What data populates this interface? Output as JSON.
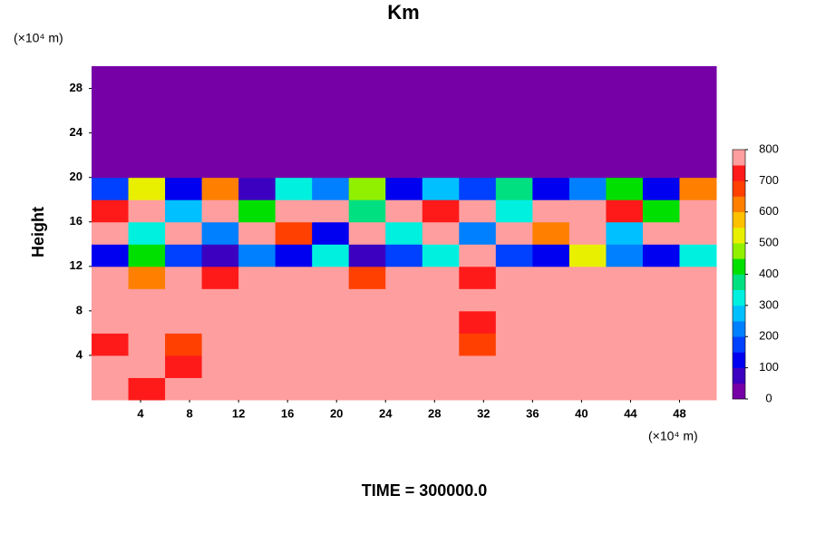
{
  "chart_data": {
    "type": "heatmap",
    "title": "Km",
    "y_label": "Height",
    "x_unit": "(×10⁴ m)",
    "y_unit": "(×10⁴ m)",
    "footer": "TIME = 300000.0",
    "xlim": [
      0,
      51
    ],
    "ylim": [
      0,
      30
    ],
    "xticks": [
      4,
      8,
      12,
      16,
      20,
      24,
      28,
      32,
      36,
      40,
      44,
      48
    ],
    "yticks": [
      4,
      8,
      12,
      16,
      20,
      24,
      28
    ],
    "x_edges": [
      0,
      3,
      6,
      9,
      12,
      15,
      18,
      21,
      24,
      27,
      30,
      33,
      36,
      39,
      42,
      45,
      48,
      51
    ],
    "y_edges": [
      0,
      2,
      4,
      6,
      8,
      10,
      12,
      14,
      16,
      18,
      20,
      22,
      24,
      26,
      28,
      30
    ],
    "z": [
      [
        800,
        700,
        800,
        800,
        750,
        800,
        800,
        800,
        800,
        800,
        800,
        800,
        800,
        800,
        800,
        800,
        800
      ],
      [
        750,
        800,
        700,
        800,
        800,
        800,
        800,
        800,
        800,
        800,
        800,
        800,
        800,
        800,
        800,
        800,
        800
      ],
      [
        700,
        800,
        650,
        800,
        800,
        800,
        800,
        800,
        800,
        750,
        650,
        800,
        800,
        800,
        750,
        800,
        750
      ],
      [
        750,
        750,
        800,
        800,
        800,
        800,
        800,
        800,
        800,
        800,
        700,
        800,
        800,
        800,
        800,
        750,
        800
      ],
      [
        800,
        750,
        800,
        800,
        800,
        800,
        800,
        800,
        800,
        800,
        800,
        800,
        800,
        750,
        800,
        800,
        800
      ],
      [
        800,
        600,
        800,
        700,
        800,
        750,
        800,
        650,
        800,
        800,
        700,
        800,
        800,
        800,
        800,
        800,
        750
      ],
      [
        100,
        400,
        150,
        50,
        200,
        100,
        300,
        50,
        150,
        300,
        800,
        150,
        100,
        500,
        200,
        100,
        300
      ],
      [
        800,
        300,
        800,
        200,
        800,
        650,
        100,
        800,
        300,
        800,
        200,
        800,
        600,
        800,
        250,
        800,
        800
      ],
      [
        700,
        800,
        250,
        800,
        400,
        800,
        800,
        350,
        800,
        700,
        800,
        300,
        800,
        800,
        700,
        400,
        800
      ],
      [
        150,
        500,
        100,
        600,
        50,
        300,
        200,
        450,
        100,
        250,
        150,
        350,
        100,
        200,
        400,
        100,
        600
      ],
      [
        0,
        0,
        0,
        0,
        0,
        0,
        0,
        0,
        0,
        0,
        0,
        0,
        0,
        0,
        0,
        0,
        0
      ],
      [
        0,
        0,
        0,
        0,
        0,
        0,
        0,
        0,
        0,
        0,
        0,
        0,
        0,
        0,
        0,
        0,
        0
      ],
      [
        0,
        0,
        0,
        0,
        0,
        0,
        0,
        0,
        0,
        0,
        0,
        0,
        0,
        0,
        0,
        0,
        0
      ],
      [
        0,
        0,
        0,
        0,
        0,
        0,
        0,
        0,
        0,
        0,
        0,
        0,
        0,
        0,
        0,
        0,
        0
      ],
      [
        0,
        0,
        0,
        0,
        0,
        0,
        0,
        0,
        0,
        0,
        0,
        0,
        0,
        0,
        0,
        0,
        0
      ]
    ],
    "clim": [
      0,
      800
    ],
    "colorbar_ticks": [
      0,
      100,
      200,
      300,
      400,
      500,
      600,
      700,
      800
    ],
    "colors": [
      "#7600a6",
      "#3c00c0",
      "#0000f0",
      "#0040ff",
      "#0080ff",
      "#00c0ff",
      "#00f0e0",
      "#00e080",
      "#00e000",
      "#90f000",
      "#e8f000",
      "#ffc000",
      "#ff8000",
      "#ff4000",
      "#ff1a1a",
      "#ff9e9e"
    ]
  }
}
